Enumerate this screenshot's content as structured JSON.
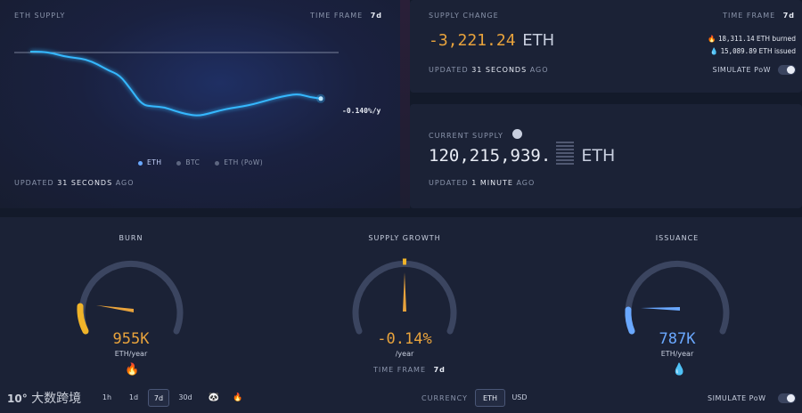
{
  "supply_panel": {
    "title": "ETH SUPPLY",
    "timeframe_label": "TIME FRAME",
    "timeframe_value": "7d",
    "rate_label": "-0.140%/y",
    "legend": [
      "ETH",
      "BTC",
      "ETH (PoW)"
    ],
    "updated_prefix": "UPDATED",
    "updated_value": "31 SECONDS",
    "updated_suffix": "AGO"
  },
  "chart_data": {
    "type": "line",
    "title": "ETH SUPPLY",
    "series": [
      {
        "name": "ETH",
        "values": [
          100,
          100,
          98,
          94,
          92,
          90,
          84,
          76,
          70,
          52,
          32,
          30,
          29,
          24,
          20,
          18,
          21,
          25,
          28,
          30,
          33,
          37,
          41,
          44,
          46,
          42,
          40
        ]
      }
    ],
    "reference_line": "start value",
    "annotation": "-0.140%/y",
    "grid": false,
    "legend_placement": "bottom"
  },
  "change_panel": {
    "title": "SUPPLY CHANGE",
    "timeframe_label": "TIME FRAME",
    "timeframe_value": "7d",
    "value": "-3,221.24",
    "unit": "ETH",
    "burned_value": "18,311.14",
    "burned_label": "ETH burned",
    "issued_value": "15,089.89",
    "issued_label": "ETH issued",
    "updated_prefix": "UPDATED",
    "updated_value": "31 SECONDS",
    "updated_suffix": "AGO",
    "simulate_label": "SIMULATE PoW"
  },
  "current_panel": {
    "title": "CURRENT SUPPLY",
    "value": "120,215,939.",
    "unit": "ETH",
    "updated_prefix": "UPDATED",
    "updated_value": "1 MINUTE",
    "updated_suffix": "AGO"
  },
  "gauges": {
    "burn": {
      "title": "BURN",
      "value": "955K",
      "unit": "ETH/year",
      "level": 0.18,
      "color": "#e8a33c"
    },
    "growth": {
      "title": "SUPPLY GROWTH",
      "value": "-0.14%",
      "unit": "/year",
      "level": 0.5,
      "color": "#e8a33c"
    },
    "issuance": {
      "title": "ISSUANCE",
      "value": "787K",
      "unit": "ETH/year",
      "level": 0.2,
      "color": "#6aa8ff"
    }
  },
  "bottom": {
    "growth_timeframe_label": "TIME FRAME",
    "growth_timeframe_value": "7d",
    "timeframes": [
      "1h",
      "1d",
      "7d",
      "30d"
    ],
    "active_timeframe": "7d",
    "currency_label": "CURRENCY",
    "currency_eth": "ETH",
    "currency_usd": "USD",
    "simulate_label": "SIMULATE PoW",
    "watermark": "大数跨境"
  },
  "colors": {
    "accent_orange": "#e8a33c",
    "accent_blue": "#6aa8ff",
    "line_cyan": "#35b8ff"
  }
}
